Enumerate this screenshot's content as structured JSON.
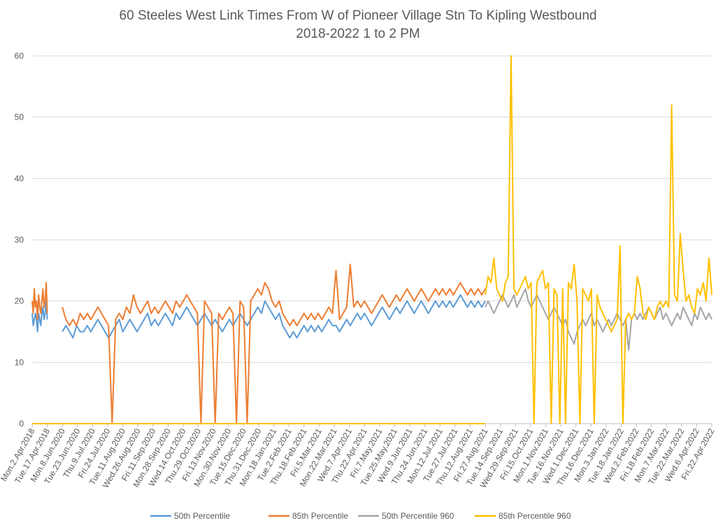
{
  "chart_data": {
    "type": "line",
    "title": "60 Steeles West Link Times From W of Pioneer Village Stn To Kipling Westbound",
    "subtitle": "2018-2022 1 to 2 PM",
    "xlabel": "",
    "ylabel": "",
    "ylim": [
      0,
      60
    ],
    "yticks": [
      0,
      10,
      20,
      30,
      40,
      50,
      60
    ],
    "grid": "horizontal",
    "legend_position": "bottom",
    "x_tick_labels": [
      "Mon.2.Apr.2018",
      "Tue.17.Apr.2018",
      "Mon.8.Jun.2020",
      "Tue.23.Jun.2020",
      "Thu.9.Jul.2020",
      "Fri.24.Jul.2020",
      "Tue.11.Aug.2020",
      "Wed.26.Aug.2020",
      "Fri.11.Sep.2020",
      "Mon.28.Sep.2020",
      "Wed.14.Oct.2020",
      "Thu.29.Oct.2020",
      "Fri.13.Nov.2020",
      "Mon.30.Nov.2020",
      "Tue.15.Dec.2020",
      "Thu.31.Dec.2020",
      "Mon.18.Jan.2021",
      "Tue.2.Feb.2021",
      "Thu.18.Feb.2021",
      "Fri.5.Mar.2021",
      "Mon.22.Mar.2021",
      "Wed.7.Apr.2021",
      "Thu.22.Apr.2021",
      "Fri.7.May.2021",
      "Tue.25.May.2021",
      "Wed.9.Jun.2021",
      "Thu.24.Jun.2021",
      "Mon.12.Jul.2021",
      "Tue.27.Jul.2021",
      "Thu.12.Aug.2021",
      "Fri.27.Aug.2021",
      "Tue.14.Sep.2021",
      "Wed.29.Sep.2021",
      "Fri.15.Oct.2021",
      "Mon.1.Nov.2021",
      "Tue.16.Nov.2021",
      "Wed.1.Dec.2021",
      "Thu.16.Dec.2021",
      "Mon.3.Jan.2022",
      "Tue.18.Jan.2022",
      "Wed.2.Feb.2022",
      "Fri.18.Feb.2022",
      "Mon.7.Mar.2022",
      "Tue.22.Mar.2022",
      "Wed.6.Apr.2022",
      "Fri.22.Apr.2022"
    ],
    "series": [
      {
        "name": "50th Percentile",
        "color": "#5B9BD5",
        "segments": [
          {
            "from_label": "Mon.2.Apr.2018",
            "to_label": "Tue.17.Apr.2018",
            "values": [
              18,
              16,
              17,
              18,
              17,
              15,
              18,
              17,
              16,
              18,
              19,
              17,
              18,
              20,
              17
            ]
          },
          {
            "from_label": "Mon.8.Jun.2020",
            "to_label": "Fri.27.Aug.2021",
            "values": [
              15,
              16,
              15,
              14,
              16,
              15,
              15,
              16,
              15,
              16,
              17,
              16,
              15,
              14,
              15,
              16,
              17,
              15,
              16,
              17,
              16,
              15,
              16,
              17,
              18,
              16,
              17,
              16,
              17,
              18,
              17,
              16,
              18,
              17,
              18,
              19,
              18,
              17,
              16,
              17,
              18,
              17,
              16,
              17,
              16,
              15,
              16,
              17,
              16,
              17,
              18,
              17,
              16,
              17,
              18,
              19,
              18,
              20,
              19,
              18,
              17,
              18,
              16,
              15,
              14,
              15,
              14,
              15,
              16,
              15,
              16,
              15,
              16,
              15,
              16,
              17,
              16,
              16,
              15,
              16,
              17,
              16,
              17,
              18,
              17,
              18,
              17,
              16,
              17,
              18,
              19,
              18,
              17,
              18,
              19,
              18,
              19,
              20,
              19,
              18,
              19,
              20,
              19,
              18,
              19,
              20,
              19,
              20,
              19,
              20,
              19,
              20,
              21,
              20,
              19,
              20,
              19,
              20,
              19,
              20
            ]
          }
        ]
      },
      {
        "name": "85th Percentile",
        "color": "#ED7D31",
        "segments": [
          {
            "from_label": "Mon.2.Apr.2018",
            "to_label": "Tue.17.Apr.2018",
            "values": [
              20,
              18,
              22,
              19,
              20,
              17,
              21,
              19,
              18,
              20,
              22,
              19,
              20,
              23,
              18
            ]
          },
          {
            "from_label": "Mon.8.Jun.2020",
            "to_label": "Fri.27.Aug.2021",
            "values": [
              19,
              17,
              16,
              17,
              16,
              18,
              17,
              18,
              17,
              18,
              19,
              18,
              17,
              16,
              0,
              17,
              18,
              17,
              19,
              18,
              21,
              19,
              18,
              19,
              20,
              18,
              19,
              18,
              19,
              20,
              19,
              18,
              20,
              19,
              20,
              21,
              20,
              19,
              18,
              0,
              20,
              19,
              18,
              0,
              18,
              17,
              18,
              19,
              18,
              0,
              20,
              19,
              0,
              20,
              21,
              22,
              21,
              23,
              22,
              20,
              19,
              20,
              18,
              17,
              16,
              17,
              16,
              17,
              18,
              17,
              18,
              17,
              18,
              17,
              18,
              19,
              18,
              25,
              17,
              18,
              19,
              26,
              19,
              20,
              19,
              20,
              19,
              18,
              19,
              20,
              21,
              20,
              19,
              20,
              21,
              20,
              21,
              22,
              21,
              20,
              21,
              22,
              21,
              20,
              21,
              22,
              21,
              22,
              21,
              22,
              21,
              22,
              23,
              22,
              21,
              22,
              21,
              22,
              21,
              22
            ]
          }
        ]
      },
      {
        "name": "50th Percentile 960",
        "color": "#A5A5A5",
        "segments": [
          {
            "from_label": "Fri.27.Aug.2021",
            "to_label": "Fri.22.Apr.2022",
            "values": [
              19,
              20,
              19,
              18,
              19,
              20,
              21,
              20,
              19,
              20,
              21,
              19,
              20,
              21,
              22,
              20,
              19,
              20,
              21,
              20,
              19,
              18,
              17,
              18,
              19,
              18,
              17,
              16,
              17,
              15,
              14,
              13,
              15,
              16,
              17,
              16,
              17,
              18,
              16,
              17,
              16,
              15,
              16,
              17,
              16,
              17,
              18,
              17,
              16,
              17,
              12,
              17,
              18,
              17,
              18,
              17,
              18,
              19,
              18,
              17,
              18,
              19,
              17,
              18,
              17,
              16,
              17,
              18,
              17,
              19,
              18,
              17,
              16,
              18,
              17,
              19,
              18,
              17,
              18,
              17
            ]
          }
        ]
      },
      {
        "name": "85th Percentile 960",
        "color": "#FFC000",
        "segments": [
          {
            "from_label": "Mon.2.Apr.2018",
            "to_label": "Fri.27.Aug.2021",
            "values": [
              0,
              0,
              0,
              0,
              0,
              0,
              0,
              0,
              0,
              0
            ]
          },
          {
            "from_label": "Fri.27.Aug.2021",
            "to_label": "Fri.22.Apr.2022",
            "values": [
              21,
              24,
              23,
              27,
              22,
              21,
              20,
              23,
              24,
              60,
              22,
              21,
              22,
              23,
              24,
              22,
              23,
              0,
              23,
              24,
              25,
              22,
              23,
              0,
              22,
              21,
              0,
              22,
              0,
              23,
              22,
              26,
              20,
              0,
              22,
              21,
              20,
              22,
              0,
              21,
              19,
              18,
              17,
              16,
              15,
              16,
              17,
              29,
              0,
              17,
              18,
              17,
              18,
              24,
              22,
              18,
              17,
              19,
              18,
              17,
              19,
              20,
              19,
              20,
              19,
              52,
              21,
              20,
              31,
              25,
              20,
              21,
              19,
              18,
              22,
              21,
              23,
              20,
              27,
              21
            ]
          }
        ]
      }
    ]
  }
}
